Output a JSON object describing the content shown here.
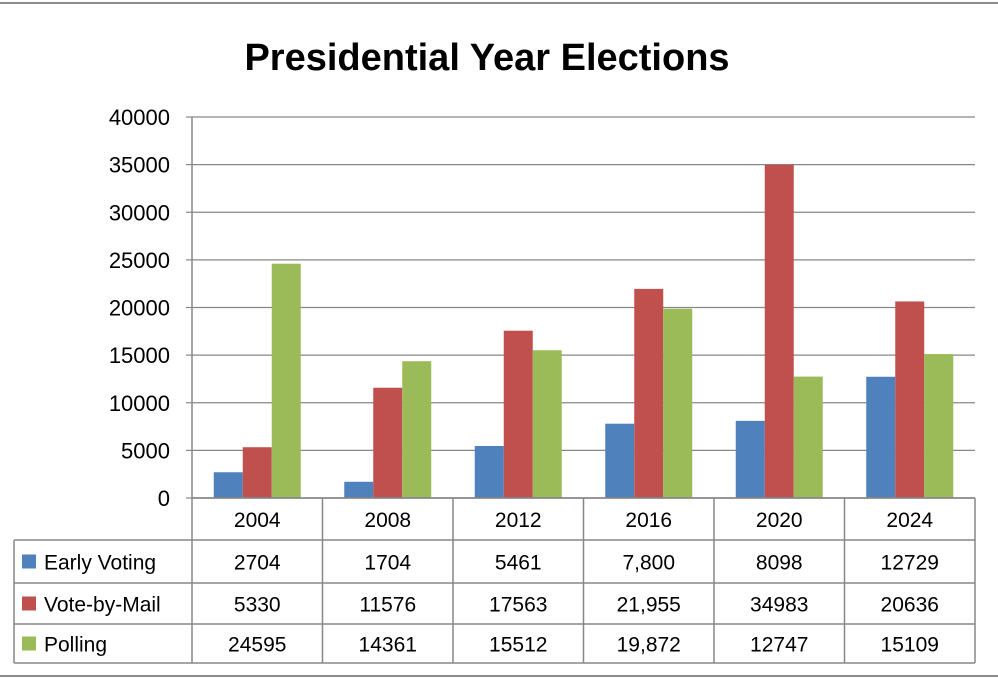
{
  "chart_data": {
    "type": "bar",
    "title": "Presidential Year Elections",
    "xlabel": "",
    "ylabel": "",
    "categories": [
      "2004",
      "2008",
      "2012",
      "2016",
      "2020",
      "2024"
    ],
    "ylim": [
      0,
      40000
    ],
    "yticks": [
      "0",
      "5000",
      "10000",
      "15000",
      "20000",
      "25000",
      "30000",
      "35000",
      "40000"
    ],
    "grid": true,
    "legend": "data-table",
    "series": [
      {
        "name": "Early Voting",
        "color": "#4f81bd",
        "values": [
          2704,
          1704,
          5461,
          7800,
          8098,
          12729
        ],
        "labels": [
          "2704",
          "1704",
          "5461",
          "7,800",
          "8098",
          "12729"
        ]
      },
      {
        "name": "Vote-by-Mail",
        "color": "#c0504d",
        "values": [
          5330,
          11576,
          17563,
          21955,
          34983,
          20636
        ],
        "labels": [
          "5330",
          "11576",
          "17563",
          "21,955",
          "34983",
          "20636"
        ]
      },
      {
        "name": "Polling",
        "color": "#9bbb59",
        "values": [
          24595,
          14361,
          15512,
          19872,
          12747,
          15109
        ],
        "labels": [
          "24595",
          "14361",
          "15512",
          "19,872",
          "12747",
          "15109"
        ]
      }
    ]
  }
}
